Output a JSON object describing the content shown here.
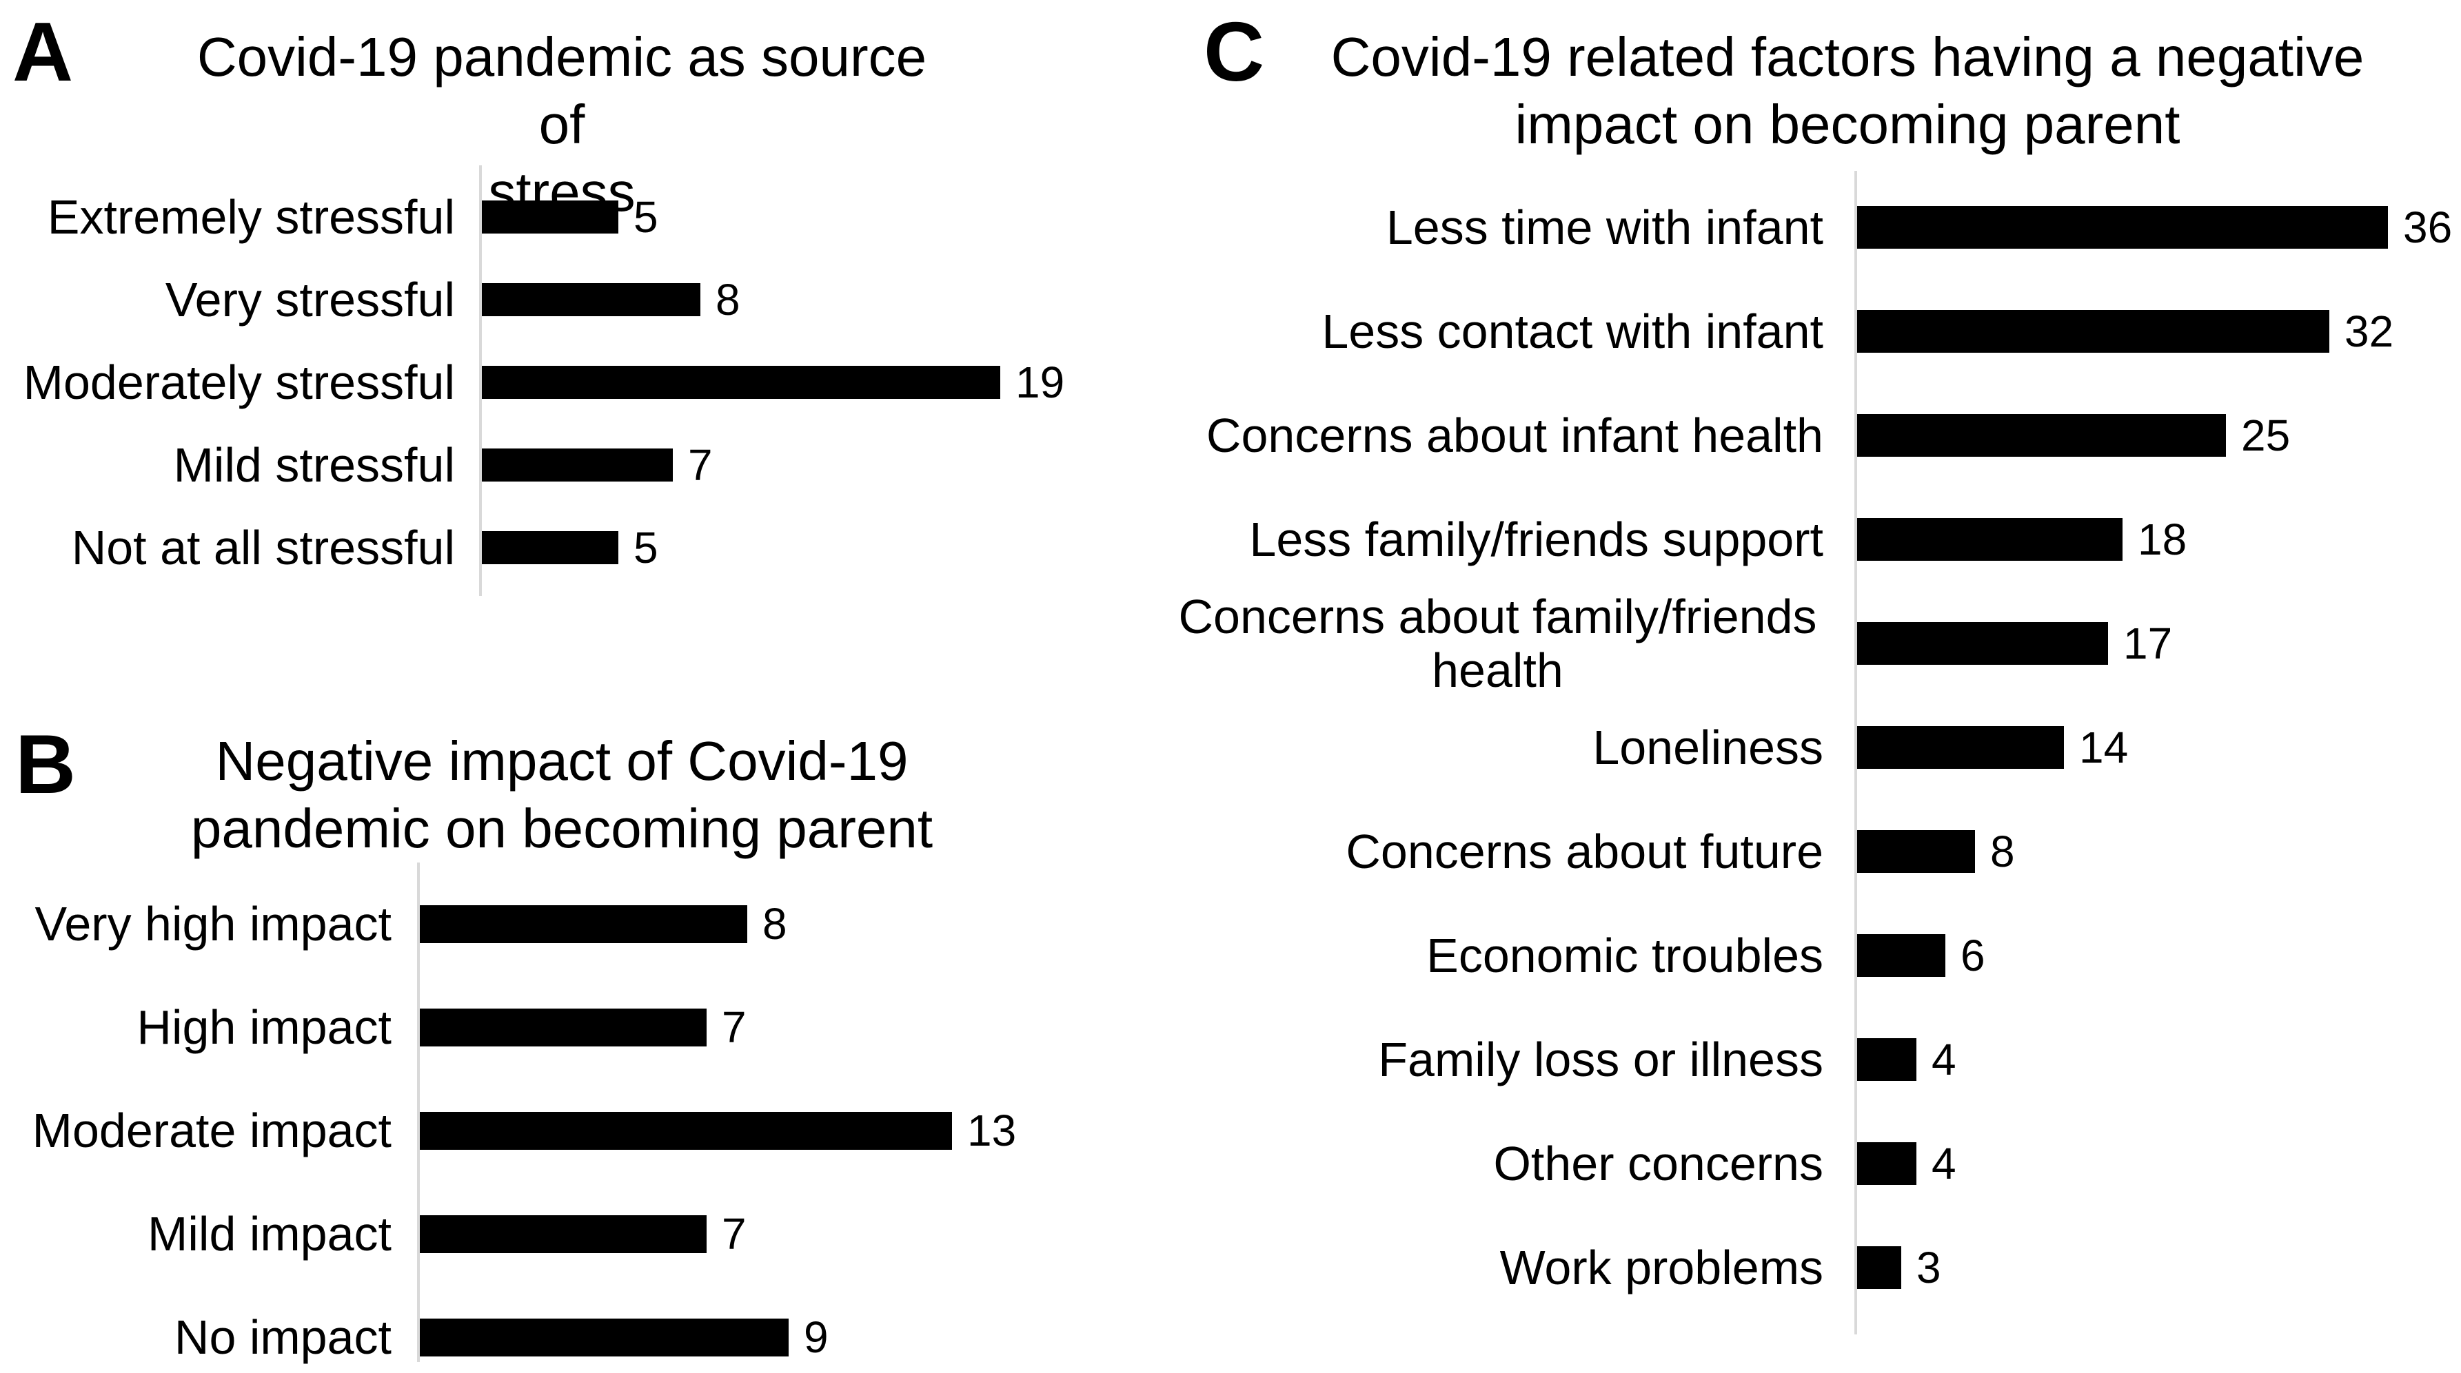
{
  "figure": {
    "background": "#ffffff",
    "panel_letters": [
      "A",
      "B",
      "C"
    ]
  },
  "colors": {
    "bar": "#000000",
    "axis_line": "#d9d9d9",
    "text": "#000000",
    "background": "#ffffff"
  },
  "chart_data": [
    {
      "panel": "A",
      "type": "bar",
      "orientation": "horizontal",
      "title": "Covid-19 pandemic as source of stress",
      "title_lines": [
        "Covid-19 pandemic as source of",
        "stress"
      ],
      "categories": [
        "Extremely stressful",
        "Very stressful",
        "Moderately stressful",
        "Mild stressful",
        "Not at all stressful"
      ],
      "values": [
        5,
        8,
        19,
        7,
        5
      ],
      "xlim": [
        0,
        19
      ],
      "grid": false,
      "legend": false,
      "value_labels_shown": true,
      "bar_color": "#000000"
    },
    {
      "panel": "B",
      "type": "bar",
      "orientation": "horizontal",
      "title": "Negative impact of Covid-19 pandemic on becoming parent",
      "title_lines": [
        "Negative impact of Covid-19",
        "pandemic on becoming parent"
      ],
      "categories": [
        "Very high impact",
        "High impact",
        "Moderate impact",
        "Mild impact",
        "No impact"
      ],
      "values": [
        8,
        7,
        13,
        7,
        9
      ],
      "xlim": [
        0,
        13
      ],
      "grid": false,
      "legend": false,
      "value_labels_shown": true,
      "bar_color": "#000000"
    },
    {
      "panel": "C",
      "type": "bar",
      "orientation": "horizontal",
      "title": "Covid-19 related factors having a negative impact on becoming parent",
      "title_lines": [
        "Covid-19 related factors having a negative",
        "impact on becoming parent"
      ],
      "categories": [
        "Less time with infant",
        "Less contact with infant",
        "Concerns about infant health",
        "Less family/friends support",
        "Concerns about family/friends health",
        "Loneliness",
        "Concerns about future",
        "Economic troubles",
        "Family loss or illness",
        "Other concerns",
        "Work problems"
      ],
      "values": [
        36,
        32,
        25,
        18,
        17,
        14,
        8,
        6,
        4,
        4,
        3
      ],
      "xlim": [
        0,
        36
      ],
      "grid": false,
      "legend": false,
      "value_labels_shown": true,
      "bar_color": "#000000"
    }
  ]
}
